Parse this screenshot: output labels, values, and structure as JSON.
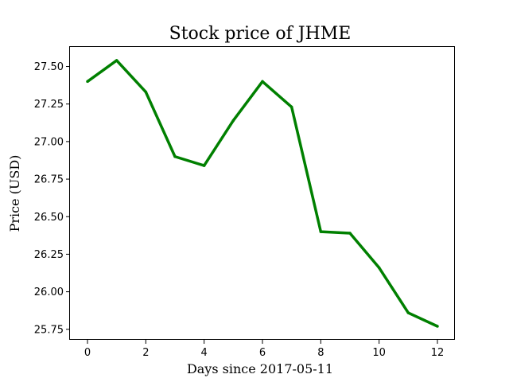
{
  "chart_data": {
    "type": "line",
    "title": "Stock price of JHME",
    "xlabel": "Days since 2017-05-11",
    "ylabel": "Price (USD)",
    "xlim": [
      -0.6,
      12.6
    ],
    "ylim": [
      25.68,
      27.63
    ],
    "xticks": [
      0,
      2,
      4,
      6,
      8,
      10,
      12
    ],
    "xtick_labels": [
      "0",
      "2",
      "4",
      "6",
      "8",
      "10",
      "12"
    ],
    "yticks": [
      25.75,
      26.0,
      26.25,
      26.5,
      26.75,
      27.0,
      27.25,
      27.5
    ],
    "ytick_labels": [
      "25.75",
      "26.00",
      "26.25",
      "26.50",
      "26.75",
      "27.00",
      "27.25",
      "27.50"
    ],
    "grid": false,
    "legend": "none",
    "series": [
      {
        "color": "#008000",
        "x": [
          0,
          1,
          2,
          3,
          4,
          5,
          6,
          7,
          8,
          9,
          10,
          11,
          12
        ],
        "values": [
          27.4,
          27.54,
          27.33,
          26.9,
          26.84,
          27.14,
          27.4,
          27.23,
          26.4,
          26.39,
          26.16,
          25.86,
          25.77
        ]
      }
    ]
  }
}
